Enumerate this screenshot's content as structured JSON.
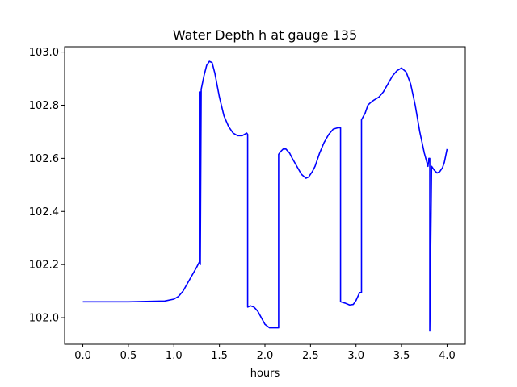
{
  "chart_data": {
    "type": "line",
    "title": "Water Depth h at gauge 135",
    "xlabel": "hours",
    "ylabel": "",
    "xlim": [
      -0.2,
      4.2
    ],
    "ylim": [
      101.9,
      103.02
    ],
    "xticks": [
      0.0,
      0.5,
      1.0,
      1.5,
      2.0,
      2.5,
      3.0,
      3.5,
      4.0
    ],
    "xtick_labels": [
      "0.0",
      "0.5",
      "1.0",
      "1.5",
      "2.0",
      "2.5",
      "3.0",
      "3.5",
      "4.0"
    ],
    "yticks": [
      102.0,
      102.2,
      102.4,
      102.6,
      102.8,
      103.0
    ],
    "ytick_labels": [
      "102.0",
      "102.2",
      "102.4",
      "102.6",
      "102.8",
      "103.0"
    ],
    "grid": false,
    "legend": "none",
    "series": [
      {
        "color": "#0000ff",
        "x": [
          0.0,
          0.5,
          0.9,
          1.0,
          1.05,
          1.1,
          1.15,
          1.2,
          1.25,
          1.28,
          1.28,
          1.29,
          1.29,
          1.3,
          1.33,
          1.36,
          1.39,
          1.42,
          1.45,
          1.5,
          1.55,
          1.6,
          1.65,
          1.7,
          1.75,
          1.8,
          1.81,
          1.81,
          1.84,
          1.88,
          1.92,
          1.96,
          2.0,
          2.05,
          2.1,
          2.15,
          2.15,
          2.17,
          2.2,
          2.23,
          2.27,
          2.3,
          2.35,
          2.4,
          2.45,
          2.48,
          2.52,
          2.55,
          2.6,
          2.65,
          2.7,
          2.75,
          2.8,
          2.83,
          2.83,
          2.88,
          2.93,
          2.97,
          3.0,
          3.04,
          3.06,
          3.06,
          3.1,
          3.13,
          3.16,
          3.2,
          3.25,
          3.3,
          3.35,
          3.4,
          3.45,
          3.5,
          3.55,
          3.6,
          3.65,
          3.7,
          3.75,
          3.79,
          3.8,
          3.81,
          3.81,
          3.83,
          3.86,
          3.89,
          3.92,
          3.95,
          3.97,
          4.0
        ],
        "y": [
          102.06,
          102.06,
          102.063,
          102.07,
          102.08,
          102.1,
          102.13,
          102.16,
          102.19,
          102.21,
          102.85,
          102.85,
          102.2,
          102.86,
          102.91,
          102.95,
          102.965,
          102.96,
          102.92,
          102.83,
          102.76,
          102.72,
          102.695,
          102.685,
          102.685,
          102.695,
          102.69,
          102.04,
          102.045,
          102.04,
          102.025,
          102.0,
          101.975,
          101.962,
          101.962,
          101.962,
          102.615,
          102.625,
          102.635,
          102.635,
          102.62,
          102.6,
          102.57,
          102.54,
          102.525,
          102.53,
          102.55,
          102.57,
          102.62,
          102.66,
          102.69,
          102.71,
          102.715,
          102.715,
          102.06,
          102.055,
          102.048,
          102.05,
          102.065,
          102.095,
          102.095,
          102.745,
          102.77,
          102.8,
          102.81,
          102.82,
          102.83,
          102.85,
          102.88,
          102.91,
          102.93,
          102.94,
          102.925,
          102.88,
          102.8,
          102.7,
          102.62,
          102.57,
          102.6,
          102.6,
          101.95,
          102.57,
          102.555,
          102.545,
          102.55,
          102.565,
          102.585,
          102.635
        ]
      }
    ]
  }
}
